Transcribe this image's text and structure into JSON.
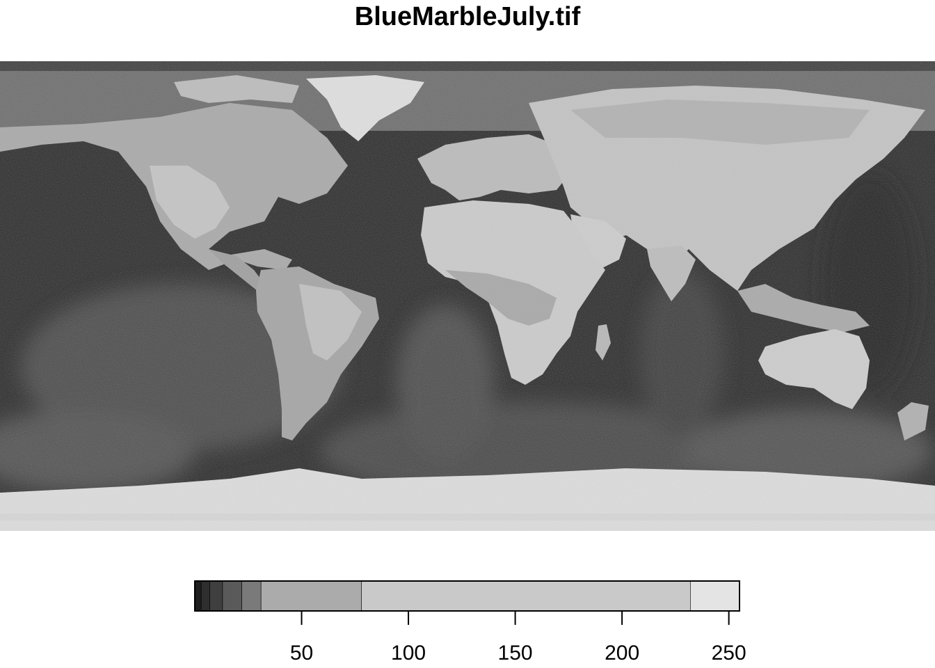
{
  "title": "BlueMarbleJuly.tif",
  "legend": {
    "min": 0,
    "max": 255,
    "ticks": [
      {
        "value": 50,
        "label": "50"
      },
      {
        "value": 100,
        "label": "100"
      },
      {
        "value": 150,
        "label": "150"
      },
      {
        "value": 200,
        "label": "200"
      },
      {
        "value": 250,
        "label": "250"
      }
    ],
    "bins": [
      {
        "from": 0,
        "to": 3,
        "color": "#1e1e1e"
      },
      {
        "from": 3,
        "to": 7,
        "color": "#2e2e2e"
      },
      {
        "from": 7,
        "to": 13,
        "color": "#3f3f3f"
      },
      {
        "from": 13,
        "to": 22,
        "color": "#5a5a5a"
      },
      {
        "from": 22,
        "to": 31,
        "color": "#7a7a7a"
      },
      {
        "from": 31,
        "to": 78,
        "color": "#ababab"
      },
      {
        "from": 78,
        "to": 232,
        "color": "#c9c9c9"
      },
      {
        "from": 232,
        "to": 255,
        "color": "#e4e4e4"
      }
    ]
  },
  "colors": {
    "ocean": "#202020",
    "ocean_shallow": "#4a4a4a",
    "land": "#c4c4c4",
    "desert": "#cfcfcf",
    "forest": "#a6a6a6",
    "ice": "#e2e2e2",
    "arctic": "#6a6a6a"
  }
}
